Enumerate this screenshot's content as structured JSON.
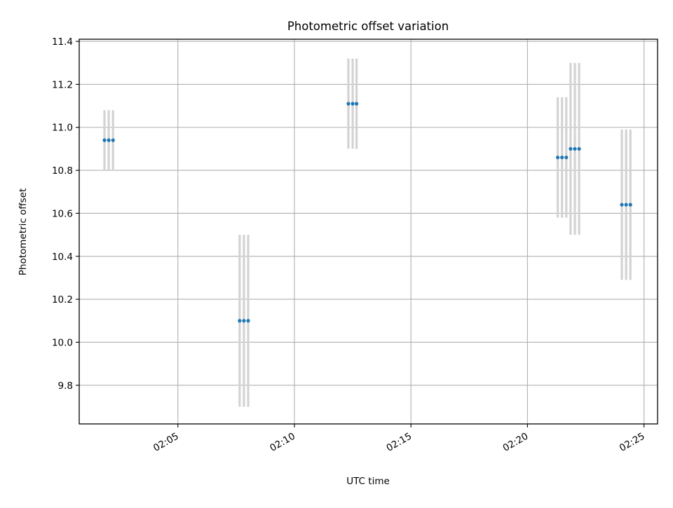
{
  "chart_data": {
    "type": "scatter",
    "title": "Photometric offset variation",
    "xlabel": "UTC time",
    "ylabel": "Photometric offset",
    "x_unit": "HH:MM (UTC)",
    "xlim": [
      "02:00:46",
      "02:25:35"
    ],
    "ylim": [
      9.62,
      11.41
    ],
    "x_ticks": [
      "02:05",
      "02:10",
      "02:15",
      "02:20",
      "02:25"
    ],
    "y_ticks": [
      9.8,
      10.0,
      10.2,
      10.4,
      10.6,
      10.8,
      11.0,
      11.2,
      11.4
    ],
    "y_tick_labels": [
      "9.8",
      "10.0",
      "10.2",
      "10.4",
      "10.6",
      "10.8",
      "11.0",
      "11.2",
      "11.4"
    ],
    "grid": true,
    "x_tick_rotation": "30deg",
    "series": [
      {
        "color": "#1f77b4",
        "error_bar_color": "#d3d3d3",
        "points": [
          {
            "x": "02:01:51",
            "y": 10.94,
            "yerr": 0.14
          },
          {
            "x": "02:02:02",
            "y": 10.94,
            "yerr": 0.14
          },
          {
            "x": "02:02:13",
            "y": 10.94,
            "yerr": 0.14
          },
          {
            "x": "02:07:39",
            "y": 10.1,
            "yerr": 0.4
          },
          {
            "x": "02:07:50",
            "y": 10.1,
            "yerr": 0.4
          },
          {
            "x": "02:08:01",
            "y": 10.1,
            "yerr": 0.4
          },
          {
            "x": "02:12:19",
            "y": 11.11,
            "yerr": 0.21
          },
          {
            "x": "02:12:30",
            "y": 11.11,
            "yerr": 0.21
          },
          {
            "x": "02:12:40",
            "y": 11.11,
            "yerr": 0.21
          },
          {
            "x": "02:21:18",
            "y": 10.86,
            "yerr": 0.28
          },
          {
            "x": "02:21:29",
            "y": 10.86,
            "yerr": 0.28
          },
          {
            "x": "02:21:40",
            "y": 10.86,
            "yerr": 0.28
          },
          {
            "x": "02:21:51",
            "y": 10.9,
            "yerr": 0.4
          },
          {
            "x": "02:22:02",
            "y": 10.9,
            "yerr": 0.4
          },
          {
            "x": "02:22:13",
            "y": 10.9,
            "yerr": 0.4
          },
          {
            "x": "02:24:03",
            "y": 10.64,
            "yerr": 0.35
          },
          {
            "x": "02:24:14",
            "y": 10.64,
            "yerr": 0.35
          },
          {
            "x": "02:24:25",
            "y": 10.64,
            "yerr": 0.35
          }
        ]
      }
    ]
  }
}
